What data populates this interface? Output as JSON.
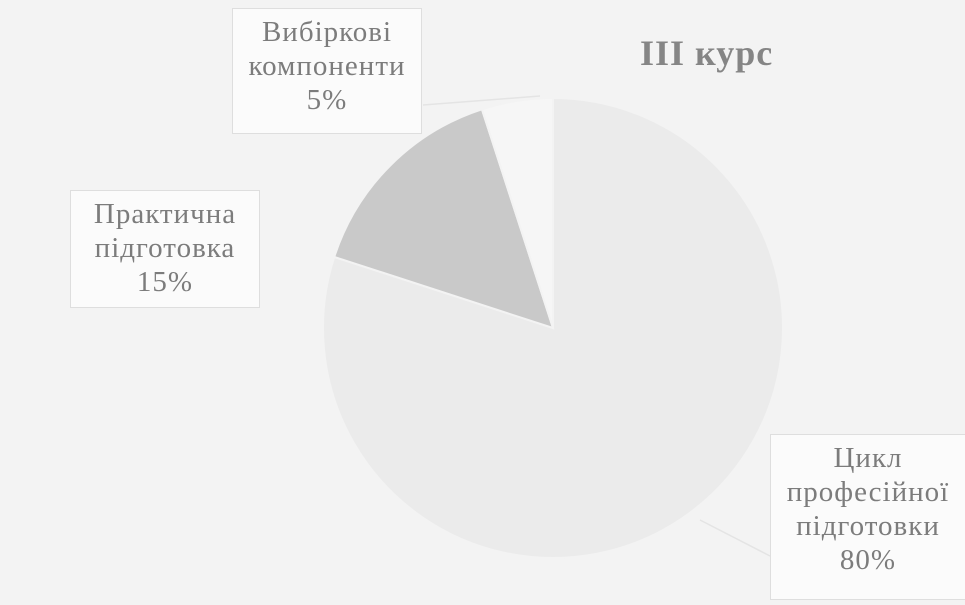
{
  "chart_data": {
    "type": "pie",
    "title": "III курс",
    "slices": [
      {
        "name": "Цикл професійної підготовки",
        "label_lines": [
          "Цикл",
          "професійної",
          "підготовки"
        ],
        "value": 80,
        "value_label": "80%",
        "color": "#ebebeb"
      },
      {
        "name": "Практична підготовка",
        "label_lines": [
          "Практична",
          "підготовка"
        ],
        "value": 15,
        "value_label": "15%",
        "color": "#c9c9c9"
      },
      {
        "name": "Вибіркові компоненти",
        "label_lines": [
          "Вибіркові",
          "компоненти"
        ],
        "value": 5,
        "value_label": "5%",
        "color": "#f6f6f6"
      }
    ]
  }
}
